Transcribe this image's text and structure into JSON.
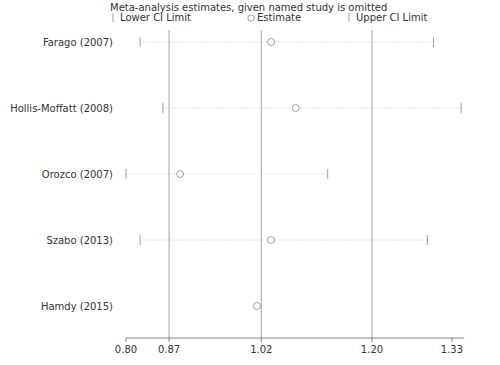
{
  "chart_data": {
    "type": "sensitivity",
    "title": "Meta-analysis estimates, given named study is omitted",
    "categories": [
      "Farago (2007)",
      "Hollis-Moffatt (2008)",
      "Orozco (2007)",
      "Szabo (2013)",
      "Hamdy (2015)"
    ],
    "series": [
      {
        "name": "Lower CI Limit",
        "marker": "tick",
        "color": "#888888",
        "values": [
          0.823,
          0.86,
          0.8,
          0.823,
          null
        ]
      },
      {
        "name": "Estimate",
        "marker": "circle",
        "color": "#888888",
        "values": [
          1.036,
          1.076,
          0.888,
          1.036,
          1.013
        ]
      },
      {
        "name": "Upper CI Limit",
        "marker": "tick",
        "color": "#888888",
        "values": [
          1.3,
          1.345,
          1.128,
          1.29,
          null
        ]
      }
    ],
    "xlim": [
      0.8,
      1.35
    ],
    "xticks": [
      {
        "value": 0.8,
        "label": "0.80"
      },
      0.87,
      1.02,
      {
        "value": 1.2,
        "label": "1.20"
      },
      1.33
    ],
    "reference_lines": [
      0.87,
      1.02,
      1.2
    ],
    "line_style": "dotted",
    "grid": false
  }
}
